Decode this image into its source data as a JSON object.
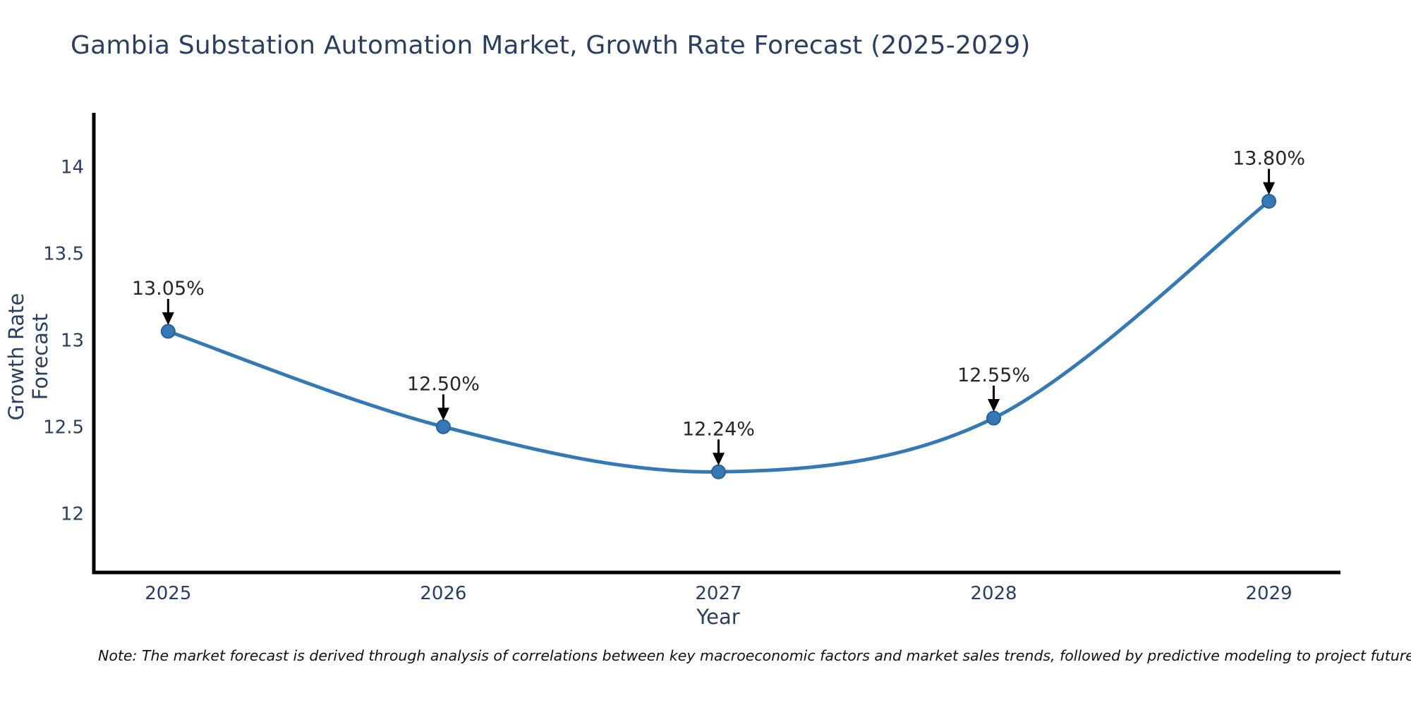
{
  "title": "Gambia Substation Automation Market, Growth Rate Forecast (2025-2029)",
  "note": "Note: The market forecast is derived through analysis of correlations between key macroeconomic factors and market sales trends, followed by predictive modeling to project future sales.",
  "chart_data": {
    "type": "line",
    "title": "Gambia Substation Automation Market, Growth Rate Forecast (2025-2029)",
    "xlabel": "Year",
    "ylabel": "Growth Rate Forecast",
    "x": [
      2025,
      2026,
      2027,
      2028,
      2029
    ],
    "series": [
      {
        "name": "Growth Rate Forecast",
        "values": [
          13.05,
          12.5,
          12.24,
          12.55,
          13.8
        ]
      }
    ],
    "point_labels": [
      "13.05%",
      "12.50%",
      "12.24%",
      "12.55%",
      "13.80%"
    ],
    "xtick_labels": [
      "2025",
      "2026",
      "2027",
      "2028",
      "2029"
    ],
    "ytick_values": [
      12,
      12.5,
      13,
      13.5,
      14
    ],
    "ytick_labels": [
      "12",
      "12.5",
      "13",
      "13.5",
      "14"
    ],
    "xlim": [
      2024.73,
      2029.26
    ],
    "ylim": [
      11.66,
      14.31
    ],
    "grid": false,
    "legend_position": "none",
    "line_shape": "spline",
    "annotations_have_arrows": true
  },
  "colors": {
    "line": "#3478b4",
    "marker_fill": "#3478b4",
    "marker_edge": "#2a6296",
    "axis_spine": "#000000",
    "arrow": "#000000",
    "title_text": "#2a3f5f",
    "tick_text": "#2a3f5f",
    "annotation_text": "#262626",
    "note_text": "#111111",
    "background": "#ffffff"
  }
}
